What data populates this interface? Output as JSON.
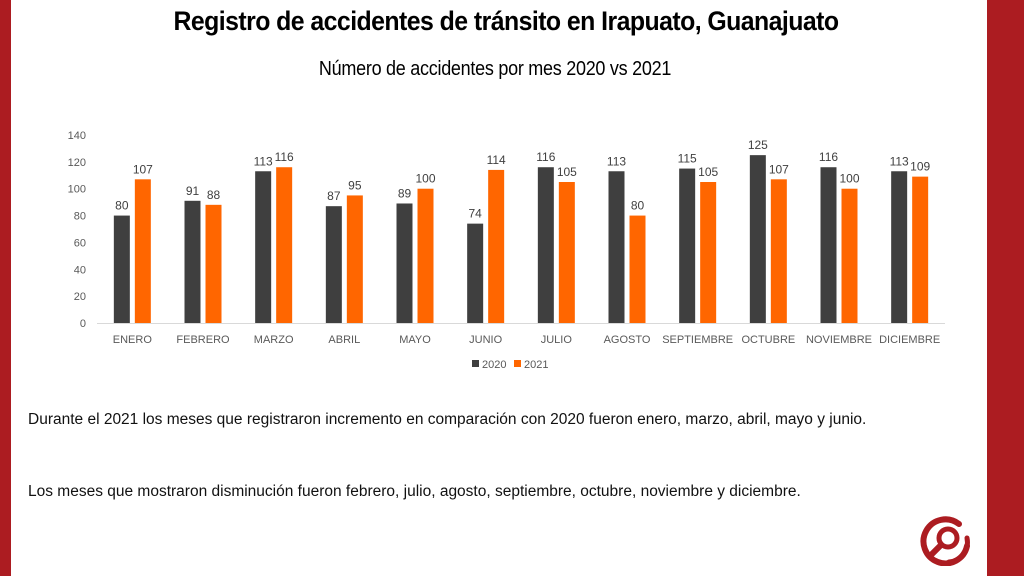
{
  "slide": {
    "title": "Registro de accidentes de tránsito en Irapuato, Guanajuato",
    "subtitle": "Número de accidentes por mes 2020 vs 2021",
    "paragraph1": "Durante el 2021 los meses que registraron incremento en comparación con 2020 fueron enero, marzo, abril, mayo y junio.",
    "paragraph2": "Los meses que mostraron disminución fueron febrero, julio, agosto, septiembre, octubre, noviembre y diciembre.",
    "logo_icon": "magnifier-circle-logo-icon",
    "colors": {
      "accent": "#ac1c21",
      "series_2020": "#3f3f3f",
      "series_2021": "#ff6600"
    }
  },
  "chart_data": {
    "type": "bar",
    "title": "Número de accidentes por mes 2020 vs 2021",
    "xlabel": "",
    "ylabel": "",
    "categories": [
      "ENERO",
      "FEBRERO",
      "MARZO",
      "ABRIL",
      "MAYO",
      "JUNIO",
      "JULIO",
      "AGOSTO",
      "SEPTIEMBRE",
      "OCTUBRE",
      "NOVIEMBRE",
      "DICIEMBRE"
    ],
    "series": [
      {
        "name": "2020",
        "color": "#3f3f3f",
        "values": [
          80,
          91,
          113,
          87,
          89,
          74,
          116,
          113,
          115,
          125,
          116,
          113
        ]
      },
      {
        "name": "2021",
        "color": "#ff6600",
        "values": [
          107,
          88,
          116,
          95,
          100,
          114,
          105,
          80,
          105,
          107,
          100,
          109
        ]
      }
    ],
    "ylim": [
      0,
      140
    ],
    "yticks": [
      0,
      20,
      40,
      60,
      80,
      100,
      120,
      140
    ],
    "grid": false,
    "data_labels": true,
    "legend": "bottom"
  }
}
